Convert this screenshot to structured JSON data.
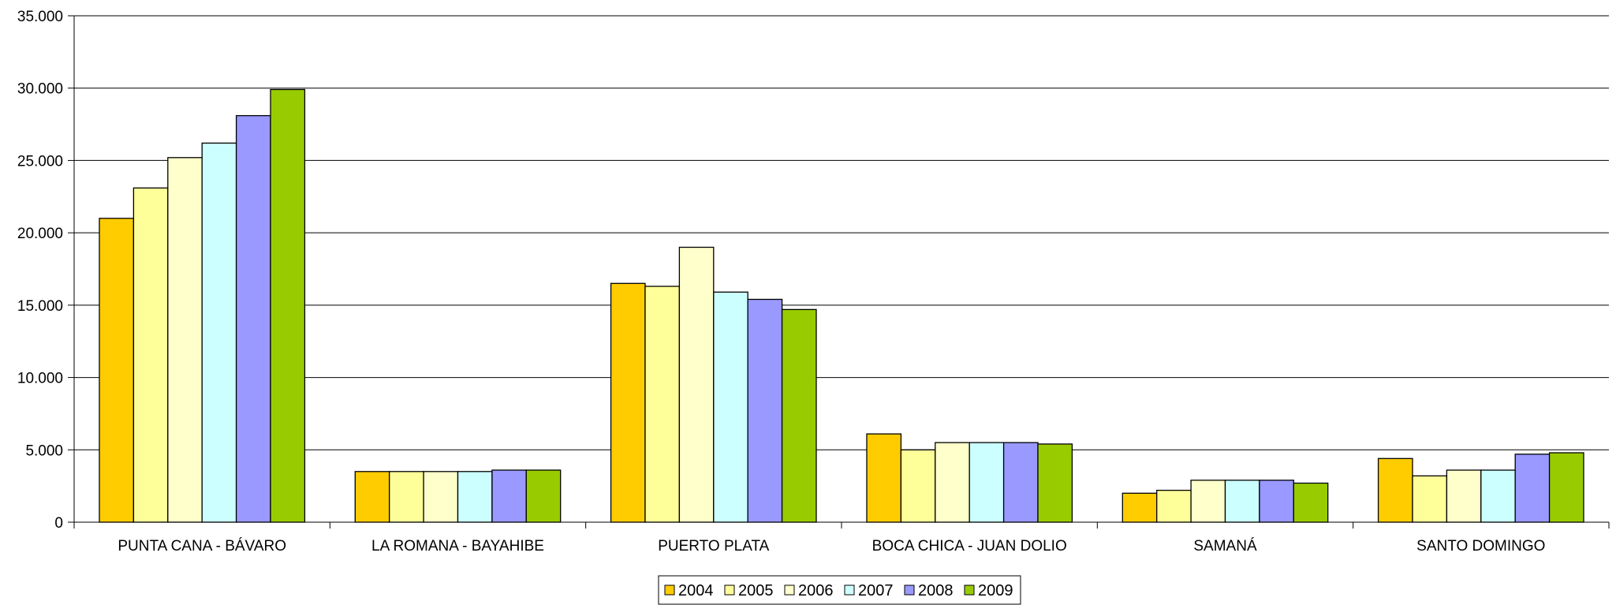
{
  "chart_data": {
    "type": "bar",
    "title": "",
    "xlabel": "",
    "ylabel": "",
    "ylim": [
      0,
      35000
    ],
    "yticks": [
      0,
      5000,
      10000,
      15000,
      20000,
      25000,
      30000,
      35000
    ],
    "ytick_labels": [
      "0",
      "5.000",
      "10.000",
      "15.000",
      "20.000",
      "25.000",
      "30.000",
      "35.000"
    ],
    "grid": true,
    "legend_position": "bottom",
    "categories": [
      "PUNTA CANA - BÁVARO",
      "LA ROMANA - BAYAHIBE",
      "PUERTO PLATA",
      "BOCA CHICA - JUAN DOLIO",
      "SAMANÁ",
      "SANTO DOMINGO"
    ],
    "series": [
      {
        "name": "2004",
        "color": "#FFCC00",
        "values": [
          21000,
          3500,
          16500,
          6100,
          2000,
          4400
        ]
      },
      {
        "name": "2005",
        "color": "#FFFF99",
        "values": [
          23100,
          3500,
          16300,
          5000,
          2200,
          3200
        ]
      },
      {
        "name": "2006",
        "color": "#FFFFCC",
        "values": [
          25200,
          3500,
          19000,
          5500,
          2900,
          3600
        ]
      },
      {
        "name": "2007",
        "color": "#CCFFFF",
        "values": [
          26200,
          3500,
          15900,
          5500,
          2900,
          3600
        ]
      },
      {
        "name": "2008",
        "color": "#9999FF",
        "values": [
          28100,
          3600,
          15400,
          5500,
          2900,
          4700
        ]
      },
      {
        "name": "2009",
        "color": "#99CC00",
        "values": [
          29900,
          3600,
          14700,
          5400,
          2700,
          4800
        ]
      }
    ]
  }
}
